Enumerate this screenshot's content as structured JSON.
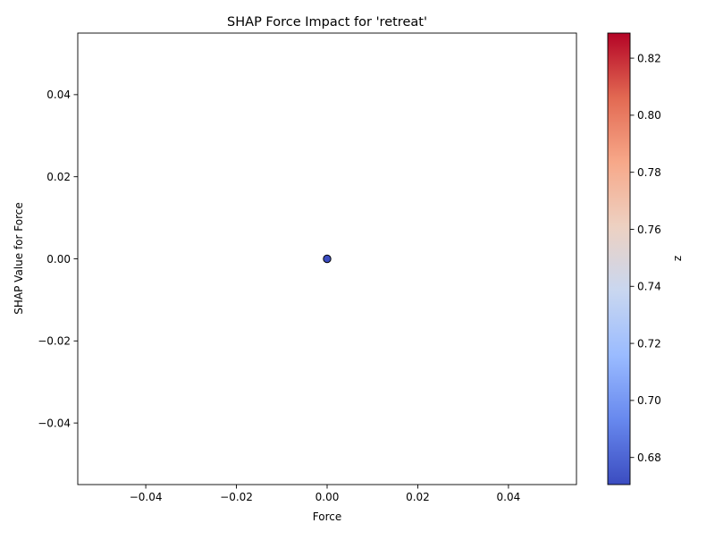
{
  "chart_data": {
    "type": "scatter",
    "title": "SHAP Force Impact for 'retreat'",
    "xlabel": "Force",
    "ylabel": "SHAP Value for Force",
    "xlim": [
      -0.055,
      0.055
    ],
    "ylim": [
      -0.055,
      0.055
    ],
    "xticks": [
      -0.04,
      -0.02,
      0.0,
      0.02,
      0.04
    ],
    "xtick_labels": [
      "−0.04",
      "−0.02",
      "0.00",
      "0.02",
      "0.04"
    ],
    "yticks": [
      -0.04,
      -0.02,
      0.0,
      0.02,
      0.04
    ],
    "ytick_labels": [
      "−0.04",
      "−0.02",
      "0.00",
      "0.02",
      "0.04"
    ],
    "grid": false,
    "points": [
      {
        "x": 0.0,
        "y": 0.0,
        "z": 0.67
      }
    ],
    "colorbar": {
      "label": "z",
      "colormap": "coolwarm",
      "range": [
        0.6705,
        0.8288
      ],
      "ticks": [
        0.68,
        0.7,
        0.72,
        0.74,
        0.76,
        0.78,
        0.8,
        0.82
      ],
      "tick_labels": [
        "0.68",
        "0.70",
        "0.72",
        "0.74",
        "0.76",
        "0.78",
        "0.80",
        "0.82"
      ],
      "stops": [
        "#3b4cc0",
        "#6788ee",
        "#9abbff",
        "#c9d7f0",
        "#edd1c2",
        "#f7a889",
        "#e26952",
        "#b40426"
      ]
    },
    "marker_edge_color": "#000000"
  }
}
